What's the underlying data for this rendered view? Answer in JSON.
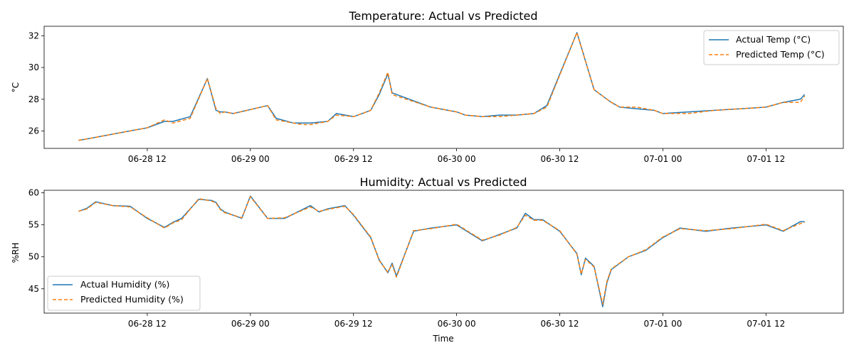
{
  "chart_data": [
    {
      "type": "line",
      "title": "Temperature: Actual vs Predicted",
      "xlabel": "",
      "ylabel": "°C",
      "x_range": [
        "2025-06-28T00:00",
        "2025-07-01T21:00"
      ],
      "ylim": [
        24.9,
        32.6
      ],
      "yticks": [
        26,
        28,
        30,
        32
      ],
      "xticks": [
        "2025-06-28T12:00",
        "2025-06-29T00:00",
        "2025-06-29T12:00",
        "2025-06-30T00:00",
        "2025-06-30T12:00",
        "2025-07-01T00:00",
        "2025-07-01T12:00"
      ],
      "xtick_labels": [
        "06-28 12",
        "06-29 00",
        "06-29 12",
        "06-30 00",
        "06-30 12",
        "07-01 00",
        "07-01 12"
      ],
      "legend_position": "top-right",
      "colors": [
        "#1f77b4",
        "#ff7f0e"
      ],
      "series": [
        {
          "name": "Actual Temp (°C)",
          "style": "solid",
          "x": [
            "2025-06-28T04:00",
            "2025-06-28T06:00",
            "2025-06-28T08:00",
            "2025-06-28T10:00",
            "2025-06-28T12:00",
            "2025-06-28T14:00",
            "2025-06-28T15:00",
            "2025-06-28T17:00",
            "2025-06-28T19:00",
            "2025-06-28T20:00",
            "2025-06-28T20:30",
            "2025-06-28T21:00",
            "2025-06-28T22:00",
            "2025-06-29T02:00",
            "2025-06-29T03:00",
            "2025-06-29T05:00",
            "2025-06-29T06:00",
            "2025-06-29T07:00",
            "2025-06-29T09:00",
            "2025-06-29T10:00",
            "2025-06-29T12:00",
            "2025-06-29T14:00",
            "2025-06-29T15:00",
            "2025-06-29T16:00",
            "2025-06-29T16:30",
            "2025-06-29T17:00",
            "2025-06-29T21:00",
            "2025-06-29T23:00",
            "2025-06-30T00:00",
            "2025-06-30T01:00",
            "2025-06-30T03:00",
            "2025-06-30T05:00",
            "2025-06-30T07:00",
            "2025-06-30T09:00",
            "2025-06-30T10:30",
            "2025-06-30T14:00",
            "2025-06-30T16:00",
            "2025-06-30T17:00",
            "2025-06-30T17:30",
            "2025-06-30T18:00",
            "2025-06-30T19:00",
            "2025-06-30T21:00",
            "2025-06-30T23:00",
            "2025-07-01T00:00",
            "2025-07-01T03:00",
            "2025-07-01T06:00",
            "2025-07-01T09:00",
            "2025-07-01T12:00",
            "2025-07-01T14:00",
            "2025-07-01T16:00",
            "2025-07-01T16:30"
          ],
          "y": [
            25.4,
            25.6,
            25.8,
            26.0,
            26.2,
            26.6,
            26.6,
            26.9,
            29.3,
            27.3,
            27.2,
            27.2,
            27.1,
            27.6,
            26.8,
            26.5,
            26.5,
            26.5,
            26.6,
            27.1,
            26.9,
            27.3,
            28.3,
            29.6,
            28.4,
            28.3,
            27.5,
            27.3,
            27.2,
            27.0,
            26.9,
            27.0,
            27.0,
            27.1,
            27.6,
            32.2,
            28.6,
            28.2,
            28.0,
            27.8,
            27.5,
            27.4,
            27.3,
            27.1,
            27.2,
            27.3,
            27.4,
            27.5,
            27.8,
            28.0,
            28.3
          ]
        },
        {
          "name": "Predicted Temp (°C)",
          "style": "dashed",
          "x": [
            "2025-06-28T04:00",
            "2025-06-28T06:00",
            "2025-06-28T08:00",
            "2025-06-28T10:00",
            "2025-06-28T12:00",
            "2025-06-28T14:00",
            "2025-06-28T15:00",
            "2025-06-28T17:00",
            "2025-06-28T19:00",
            "2025-06-28T20:00",
            "2025-06-28T20:30",
            "2025-06-28T21:00",
            "2025-06-28T22:00",
            "2025-06-29T02:00",
            "2025-06-29T03:00",
            "2025-06-29T05:00",
            "2025-06-29T06:00",
            "2025-06-29T07:00",
            "2025-06-29T09:00",
            "2025-06-29T10:00",
            "2025-06-29T12:00",
            "2025-06-29T14:00",
            "2025-06-29T15:00",
            "2025-06-29T16:00",
            "2025-06-29T16:30",
            "2025-06-29T17:00",
            "2025-06-29T21:00",
            "2025-06-29T23:00",
            "2025-06-30T00:00",
            "2025-06-30T01:00",
            "2025-06-30T03:00",
            "2025-06-30T05:00",
            "2025-06-30T07:00",
            "2025-06-30T09:00",
            "2025-06-30T10:30",
            "2025-06-30T14:00",
            "2025-06-30T16:00",
            "2025-06-30T17:00",
            "2025-06-30T17:30",
            "2025-06-30T18:00",
            "2025-06-30T19:00",
            "2025-06-30T21:00",
            "2025-06-30T23:00",
            "2025-07-01T00:00",
            "2025-07-01T03:00",
            "2025-07-01T06:00",
            "2025-07-01T09:00",
            "2025-07-01T12:00",
            "2025-07-01T14:00",
            "2025-07-01T16:00",
            "2025-07-01T16:30"
          ],
          "y": [
            25.4,
            25.6,
            25.8,
            26.0,
            26.2,
            26.7,
            26.5,
            26.8,
            29.3,
            27.4,
            27.1,
            27.2,
            27.1,
            27.6,
            26.7,
            26.5,
            26.4,
            26.4,
            26.6,
            27.0,
            26.9,
            27.3,
            28.4,
            29.7,
            28.3,
            28.2,
            27.5,
            27.3,
            27.2,
            27.0,
            26.9,
            26.9,
            27.0,
            27.1,
            27.5,
            32.2,
            28.6,
            28.2,
            28.0,
            27.8,
            27.5,
            27.5,
            27.3,
            27.1,
            27.1,
            27.3,
            27.4,
            27.5,
            27.8,
            27.8,
            28.2
          ]
        }
      ]
    },
    {
      "type": "line",
      "title": "Humidity: Actual vs Predicted",
      "xlabel": "Time",
      "ylabel": "%RH",
      "x_range": [
        "2025-06-28T00:00",
        "2025-07-01T21:00"
      ],
      "ylim": [
        41.2,
        60.4
      ],
      "yticks": [
        45,
        50,
        55,
        60
      ],
      "xticks": [
        "2025-06-28T12:00",
        "2025-06-29T00:00",
        "2025-06-29T12:00",
        "2025-06-30T00:00",
        "2025-06-30T12:00",
        "2025-07-01T00:00",
        "2025-07-01T12:00"
      ],
      "xtick_labels": [
        "06-28 12",
        "06-29 00",
        "06-29 12",
        "06-30 00",
        "06-30 12",
        "07-01 00",
        "07-01 12"
      ],
      "legend_position": "bottom-left",
      "colors": [
        "#1f77b4",
        "#ff7f0e"
      ],
      "series": [
        {
          "name": "Actual Humidity (%)",
          "style": "solid",
          "x": [
            "2025-06-28T04:00",
            "2025-06-28T05:00",
            "2025-06-28T06:00",
            "2025-06-28T08:00",
            "2025-06-28T10:00",
            "2025-06-28T12:00",
            "2025-06-28T14:00",
            "2025-06-28T15:00",
            "2025-06-28T16:00",
            "2025-06-28T18:00",
            "2025-06-28T19:30",
            "2025-06-28T20:00",
            "2025-06-28T20:30",
            "2025-06-28T21:00",
            "2025-06-28T23:00",
            "2025-06-29T00:00",
            "2025-06-29T02:00",
            "2025-06-29T04:00",
            "2025-06-29T07:00",
            "2025-06-29T08:00",
            "2025-06-29T09:00",
            "2025-06-29T11:00",
            "2025-06-29T12:00",
            "2025-06-29T14:00",
            "2025-06-29T15:00",
            "2025-06-29T16:00",
            "2025-06-29T16:30",
            "2025-06-29T17:00",
            "2025-06-29T19:00",
            "2025-06-29T21:00",
            "2025-06-30T00:00",
            "2025-06-30T03:00",
            "2025-06-30T05:00",
            "2025-06-30T07:00",
            "2025-06-30T08:00",
            "2025-06-30T09:00",
            "2025-06-30T10:00",
            "2025-06-30T12:00",
            "2025-06-30T14:00",
            "2025-06-30T14:30",
            "2025-06-30T15:00",
            "2025-06-30T16:00",
            "2025-06-30T17:00",
            "2025-06-30T17:30",
            "2025-06-30T18:00",
            "2025-06-30T20:00",
            "2025-06-30T22:00",
            "2025-07-01T00:00",
            "2025-07-01T02:00",
            "2025-07-01T05:00",
            "2025-07-01T08:00",
            "2025-07-01T12:00",
            "2025-07-01T14:00",
            "2025-07-01T16:00",
            "2025-07-01T16:30"
          ],
          "y": [
            57.1,
            57.6,
            58.6,
            58.0,
            57.9,
            56.0,
            54.6,
            55.4,
            56.0,
            59.0,
            58.8,
            58.5,
            57.5,
            57.0,
            56.0,
            59.5,
            56.0,
            56.0,
            58.0,
            57.0,
            57.5,
            58.0,
            56.5,
            53.0,
            49.5,
            47.5,
            49.0,
            47.0,
            54.0,
            54.5,
            55.0,
            52.5,
            53.5,
            54.5,
            56.8,
            55.8,
            55.8,
            54.0,
            50.5,
            47.2,
            49.8,
            48.5,
            42.2,
            46.0,
            48.0,
            50.0,
            51.0,
            53.0,
            54.5,
            54.0,
            54.5,
            55.0,
            54.0,
            55.5,
            55.5
          ]
        },
        {
          "name": "Predicted Humidity (%)",
          "style": "dashed",
          "x": [
            "2025-06-28T04:00",
            "2025-06-28T05:00",
            "2025-06-28T06:00",
            "2025-06-28T08:00",
            "2025-06-28T10:00",
            "2025-06-28T12:00",
            "2025-06-28T14:00",
            "2025-06-28T15:00",
            "2025-06-28T16:00",
            "2025-06-28T18:00",
            "2025-06-28T19:30",
            "2025-06-28T20:00",
            "2025-06-28T20:30",
            "2025-06-28T21:00",
            "2025-06-28T23:00",
            "2025-06-29T00:00",
            "2025-06-29T02:00",
            "2025-06-29T04:00",
            "2025-06-29T07:00",
            "2025-06-29T08:00",
            "2025-06-29T09:00",
            "2025-06-29T11:00",
            "2025-06-29T12:00",
            "2025-06-29T14:00",
            "2025-06-29T15:00",
            "2025-06-29T16:00",
            "2025-06-29T16:30",
            "2025-06-29T17:00",
            "2025-06-29T19:00",
            "2025-06-29T21:00",
            "2025-06-30T00:00",
            "2025-06-30T03:00",
            "2025-06-30T05:00",
            "2025-06-30T07:00",
            "2025-06-30T08:00",
            "2025-06-30T09:00",
            "2025-06-30T10:00",
            "2025-06-30T12:00",
            "2025-06-30T14:00",
            "2025-06-30T14:30",
            "2025-06-30T15:00",
            "2025-06-30T16:00",
            "2025-06-30T17:00",
            "2025-06-30T17:30",
            "2025-06-30T18:00",
            "2025-06-30T20:00",
            "2025-06-30T22:00",
            "2025-07-01T00:00",
            "2025-07-01T02:00",
            "2025-07-01T05:00",
            "2025-07-01T08:00",
            "2025-07-01T12:00",
            "2025-07-01T14:00",
            "2025-07-01T16:00",
            "2025-07-01T16:30"
          ],
          "y": [
            57.1,
            57.5,
            58.5,
            58.0,
            57.8,
            56.1,
            54.5,
            55.3,
            55.8,
            59.1,
            58.7,
            58.4,
            57.4,
            56.9,
            56.1,
            59.4,
            56.0,
            56.1,
            57.8,
            57.1,
            57.4,
            57.9,
            56.6,
            53.1,
            49.4,
            47.6,
            48.8,
            46.8,
            54.1,
            54.4,
            55.1,
            52.6,
            53.4,
            54.6,
            56.5,
            55.7,
            55.7,
            54.1,
            50.4,
            47.3,
            49.6,
            48.4,
            42.6,
            46.2,
            48.1,
            50.0,
            51.1,
            53.1,
            54.4,
            54.1,
            54.4,
            55.1,
            54.1,
            55.2,
            55.4
          ]
        }
      ]
    }
  ]
}
